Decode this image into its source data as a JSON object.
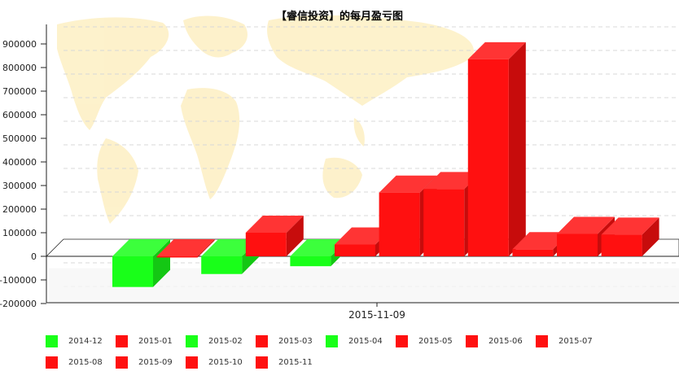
{
  "chart_data": {
    "type": "bar",
    "title": "【睿信投资】的每月盈亏图",
    "xlabel": "",
    "ylabel": "",
    "categories": [
      "2015-11-09"
    ],
    "ylim": [
      -200000,
      900000
    ],
    "y_ticks": [
      900000,
      800000,
      700000,
      600000,
      500000,
      400000,
      300000,
      200000,
      100000,
      0,
      -100000,
      -200000
    ],
    "grid": true,
    "legend_position": "bottom",
    "series": [
      {
        "name": "2014-12",
        "values": [
          -130000
        ],
        "color": "#19ff19"
      },
      {
        "name": "2015-01",
        "values": [
          -5000
        ],
        "color": "#ff1010"
      },
      {
        "name": "2015-02",
        "values": [
          -75000
        ],
        "color": "#19ff19"
      },
      {
        "name": "2015-03",
        "values": [
          100000
        ],
        "color": "#ff1010"
      },
      {
        "name": "2015-04",
        "values": [
          -42000
        ],
        "color": "#19ff19"
      },
      {
        "name": "2015-05",
        "values": [
          50000
        ],
        "color": "#ff1010"
      },
      {
        "name": "2015-06",
        "values": [
          270000
        ],
        "color": "#ff1010"
      },
      {
        "name": "2015-07",
        "values": [
          285000
        ],
        "color": "#ff1010"
      },
      {
        "name": "2015-08",
        "values": [
          835000
        ],
        "color": "#ff1010"
      },
      {
        "name": "2015-09",
        "values": [
          30000
        ],
        "color": "#ff1010"
      },
      {
        "name": "2015-10",
        "values": [
          95000
        ],
        "color": "#ff1010"
      },
      {
        "name": "2015-11",
        "values": [
          92000
        ],
        "color": "#ff1010"
      }
    ]
  }
}
